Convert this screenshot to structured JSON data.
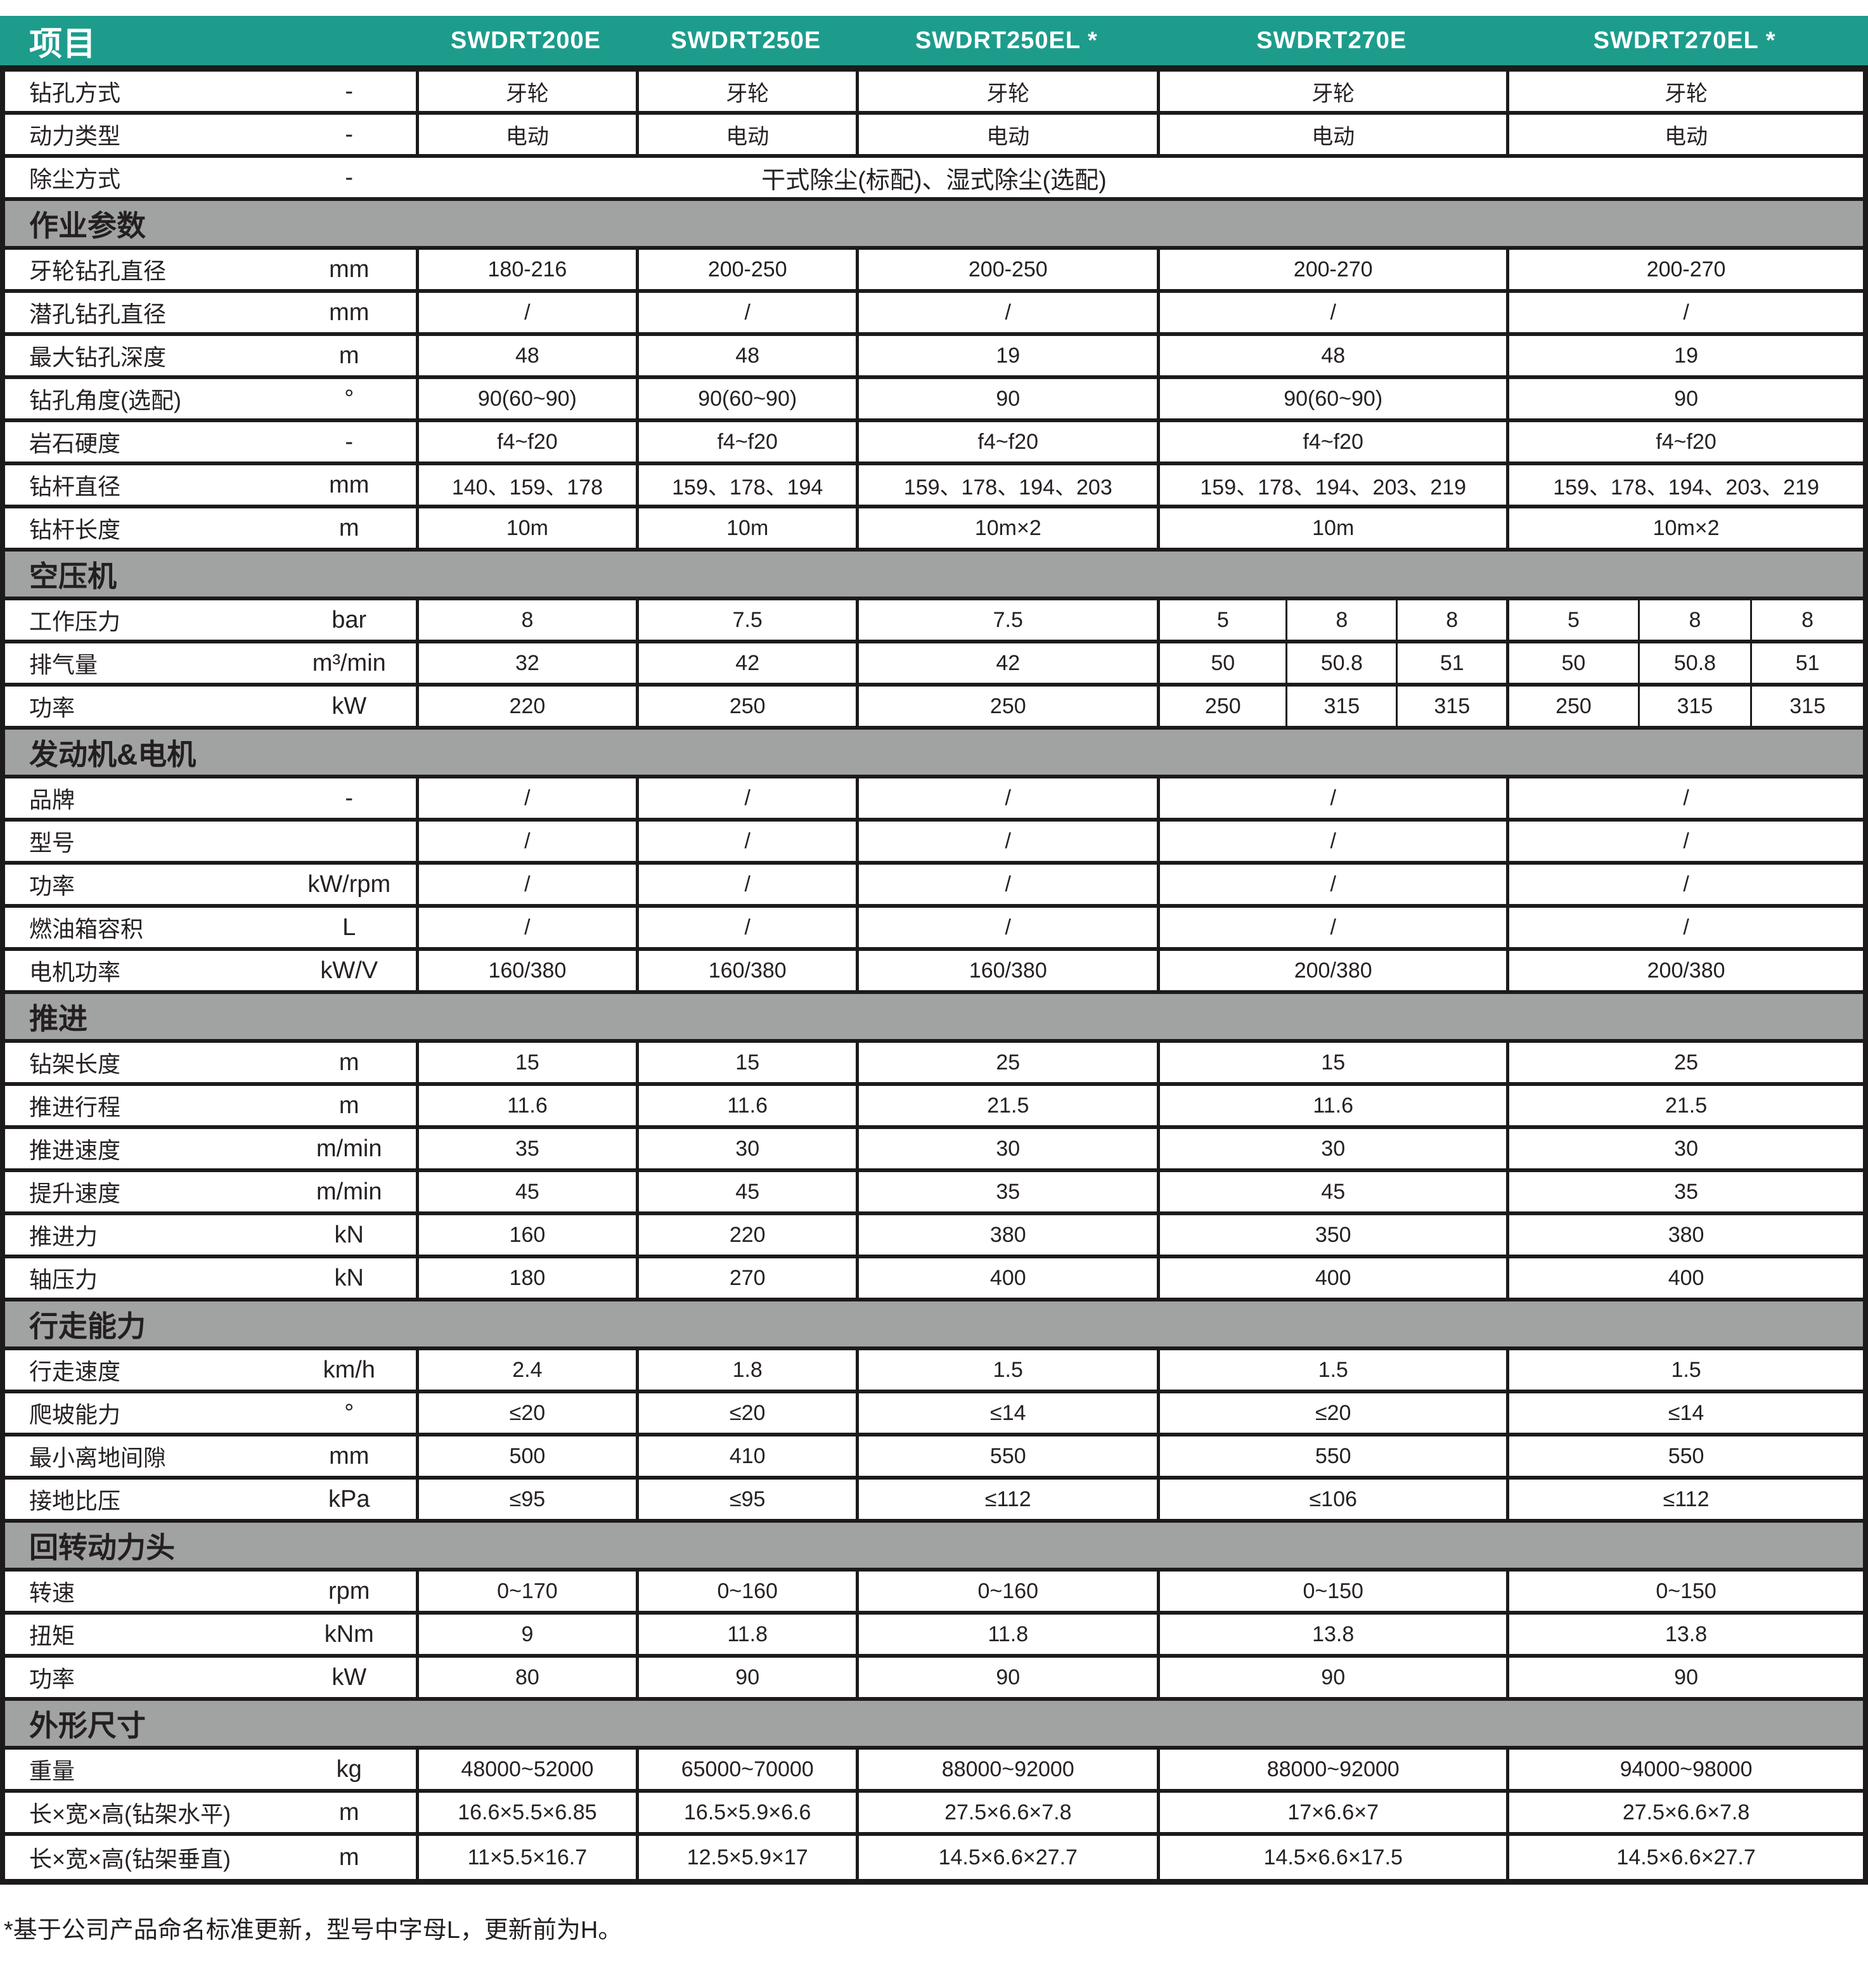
{
  "colors": {
    "header_teal": "#1d9c8c",
    "section_gray": "#a1a2a2",
    "border_black": "#1d1a1b"
  },
  "footnote": "*基于公司产品命名标准更新，型号中字母L，更新前为H。",
  "table": {
    "columns": [
      "项目",
      "SWDRT200E",
      "SWDRT250E",
      "SWDRT250EL *",
      "SWDRT270E",
      "SWDRT270EL *"
    ],
    "sections": [
      {
        "title": null,
        "rows": [
          {
            "label": "钻孔方式",
            "unit": "-",
            "values": [
              "牙轮",
              "牙轮",
              "牙轮",
              "牙轮",
              "牙轮"
            ]
          },
          {
            "label": "动力类型",
            "unit": "-",
            "values": [
              "电动",
              "电动",
              "电动",
              "电动",
              "电动"
            ]
          },
          {
            "label": "除尘方式",
            "unit": "-",
            "merged": "干式除尘(标配)、湿式除尘(选配)"
          }
        ]
      },
      {
        "title": "作业参数",
        "rows": [
          {
            "label": "牙轮钻孔直径",
            "unit": "mm",
            "values": [
              "180-216",
              "200-250",
              "200-250",
              "200-270",
              "200-270"
            ]
          },
          {
            "label": "潜孔钻孔直径",
            "unit": "mm",
            "values": [
              "/",
              "/",
              "/",
              "/",
              "/"
            ]
          },
          {
            "label": "最大钻孔深度",
            "unit": "m",
            "values": [
              "48",
              "48",
              "19",
              "48",
              "19"
            ]
          },
          {
            "label": "钻孔角度(选配)",
            "unit": "°",
            "values": [
              "90(60~90)",
              "90(60~90)",
              "90",
              "90(60~90)",
              "90"
            ]
          },
          {
            "label": "岩石硬度",
            "unit": "-",
            "values": [
              "f4~f20",
              "f4~f20",
              "f4~f20",
              "f4~f20",
              "f4~f20"
            ]
          },
          {
            "label": "钻杆直径",
            "unit": "mm",
            "values": [
              "140、159、178",
              "159、178、194",
              "159、178、194、203",
              "159、178、194、203、219",
              "159、178、194、203、219"
            ]
          },
          {
            "label": "钻杆长度",
            "unit": "m",
            "values": [
              "10m",
              "10m",
              "10m×2",
              "10m",
              "10m×2"
            ]
          }
        ]
      },
      {
        "title": "空压机",
        "rows": [
          {
            "label": "工作压力",
            "unit": "bar",
            "values": [
              "8",
              "7.5",
              "7.5",
              {
                "split": [
                  "5",
                  "8",
                  "8"
                ]
              },
              {
                "split": [
                  "5",
                  "8",
                  "8"
                ]
              }
            ]
          },
          {
            "label": "排气量",
            "unit": "m³/min",
            "values": [
              "32",
              "42",
              "42",
              {
                "split": [
                  "50",
                  "50.8",
                  "51"
                ]
              },
              {
                "split": [
                  "50",
                  "50.8",
                  "51"
                ]
              }
            ]
          },
          {
            "label": "功率",
            "unit": "kW",
            "values": [
              "220",
              "250",
              "250",
              {
                "split": [
                  "250",
                  "315",
                  "315"
                ]
              },
              {
                "split": [
                  "250",
                  "315",
                  "315"
                ]
              }
            ]
          }
        ]
      },
      {
        "title": "发动机&电机",
        "rows": [
          {
            "label": "品牌",
            "unit": "-",
            "values": [
              "/",
              "/",
              "/",
              "/",
              "/"
            ]
          },
          {
            "label": "型号",
            "unit": "",
            "values": [
              "/",
              "/",
              "/",
              "/",
              "/"
            ]
          },
          {
            "label": "功率",
            "unit": "kW/rpm",
            "values": [
              "/",
              "/",
              "/",
              "/",
              "/"
            ]
          },
          {
            "label": "燃油箱容积",
            "unit": "L",
            "values": [
              "/",
              "/",
              "/",
              "/",
              "/"
            ]
          },
          {
            "label": "电机功率",
            "unit": "kW/V",
            "values": [
              "160/380",
              "160/380",
              "160/380",
              "200/380",
              "200/380"
            ]
          }
        ]
      },
      {
        "title": "推进",
        "rows": [
          {
            "label": "钻架长度",
            "unit": "m",
            "values": [
              "15",
              "15",
              "25",
              "15",
              "25"
            ]
          },
          {
            "label": "推进行程",
            "unit": "m",
            "values": [
              "11.6",
              "11.6",
              "21.5",
              "11.6",
              "21.5"
            ]
          },
          {
            "label": "推进速度",
            "unit": "m/min",
            "values": [
              "35",
              "30",
              "30",
              "30",
              "30"
            ]
          },
          {
            "label": "提升速度",
            "unit": "m/min",
            "values": [
              "45",
              "45",
              "35",
              "45",
              "35"
            ]
          },
          {
            "label": "推进力",
            "unit": "kN",
            "values": [
              "160",
              "220",
              "380",
              "350",
              "380"
            ]
          },
          {
            "label": "轴压力",
            "unit": "kN",
            "values": [
              "180",
              "270",
              "400",
              "400",
              "400"
            ]
          }
        ]
      },
      {
        "title": "行走能力",
        "rows": [
          {
            "label": "行走速度",
            "unit": "km/h",
            "values": [
              "2.4",
              "1.8",
              "1.5",
              "1.5",
              "1.5"
            ]
          },
          {
            "label": "爬坡能力",
            "unit": "°",
            "values": [
              "≤20",
              "≤20",
              "≤14",
              "≤20",
              "≤14"
            ]
          },
          {
            "label": "最小离地间隙",
            "unit": "mm",
            "values": [
              "500",
              "410",
              "550",
              "550",
              "550"
            ]
          },
          {
            "label": "接地比压",
            "unit": "kPa",
            "values": [
              "≤95",
              "≤95",
              "≤112",
              "≤106",
              "≤112"
            ]
          }
        ]
      },
      {
        "title": "回转动力头",
        "rows": [
          {
            "label": "转速",
            "unit": "rpm",
            "values": [
              "0~170",
              "0~160",
              "0~160",
              "0~150",
              "0~150"
            ]
          },
          {
            "label": "扭矩",
            "unit": "kNm",
            "values": [
              "9",
              "11.8",
              "11.8",
              "13.8",
              "13.8"
            ]
          },
          {
            "label": "功率",
            "unit": "kW",
            "values": [
              "80",
              "90",
              "90",
              "90",
              "90"
            ]
          }
        ]
      },
      {
        "title": "外形尺寸",
        "rows": [
          {
            "label": "重量",
            "unit": "kg",
            "values": [
              "48000~52000",
              "65000~70000",
              "88000~92000",
              "88000~92000",
              "94000~98000"
            ]
          },
          {
            "label": "长×宽×高(钻架水平)",
            "unit": "m",
            "values": [
              "16.6×5.5×6.85",
              "16.5×5.9×6.6",
              "27.5×6.6×7.8",
              "17×6.6×7",
              "27.5×6.6×7.8"
            ]
          },
          {
            "label": "长×宽×高(钻架垂直)",
            "unit": "m",
            "values": [
              "11×5.5×16.7",
              "12.5×5.9×17",
              "14.5×6.6×27.7",
              "14.5×6.6×17.5",
              "14.5×6.6×27.7"
            ]
          }
        ]
      }
    ]
  }
}
